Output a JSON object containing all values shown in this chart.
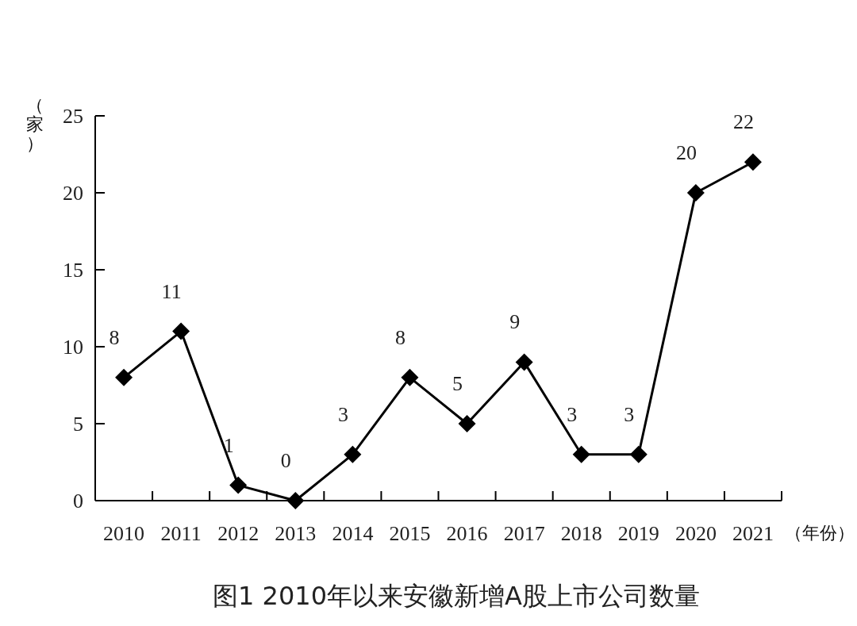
{
  "chart_data": {
    "type": "line",
    "title": "图1  2010年以来安徽新增A股上市公司数量",
    "xlabel": "（年份）",
    "ylabel": "（家）",
    "categories": [
      "2010",
      "2011",
      "2012",
      "2013",
      "2014",
      "2015",
      "2016",
      "2017",
      "2018",
      "2019",
      "2020",
      "2021"
    ],
    "values": [
      8,
      11,
      1,
      0,
      3,
      8,
      5,
      9,
      3,
      3,
      20,
      22
    ],
    "color": "#000000",
    "ylim": [
      0,
      25
    ],
    "yticks": [
      0,
      5,
      10,
      15,
      20,
      25
    ],
    "marker": "diamond",
    "line_style": "solid",
    "data_labels": true,
    "grid": false
  }
}
